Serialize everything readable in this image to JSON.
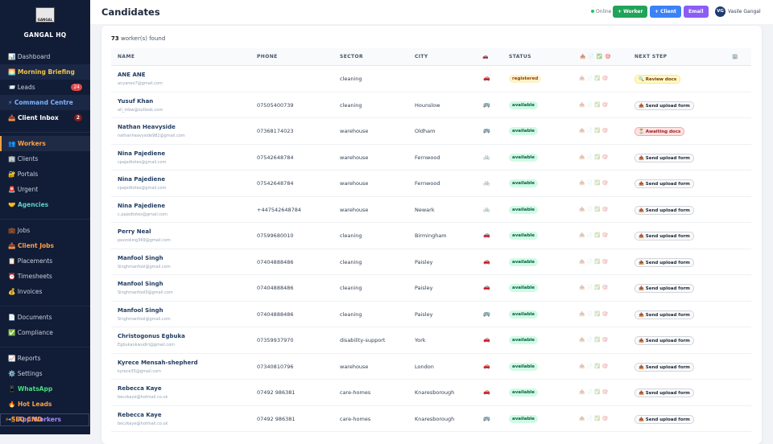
{
  "sidebar": {
    "brand": "GANGAL HQ",
    "logo_text": "GANGAL",
    "groups": [
      [
        {
          "label": "📊 Dashboard"
        },
        {
          "label": "🌅 Morning Briefing",
          "color": "#f6c244",
          "highlight": true
        },
        {
          "label": "📨 Leads",
          "badge": "24"
        },
        {
          "label": "⚡ Command Centre",
          "color": "#7fb4ff",
          "highlight": true
        },
        {
          "label": "📥 Client Inbox",
          "badge": "2",
          "color": "#ffffff"
        }
      ],
      [
        {
          "label": "👥 Workers",
          "color": "#ff9f43",
          "active": true
        },
        {
          "label": "🏢 Clients"
        },
        {
          "label": "🔐 Portals"
        },
        {
          "label": "🚨 Urgent"
        },
        {
          "label": "🤝 Agencies",
          "color": "#5fd1c6"
        }
      ],
      [
        {
          "label": "💼 Jobs"
        },
        {
          "label": "📥 Client Jobs",
          "color": "#ff9f43"
        },
        {
          "label": "📋 Placements"
        },
        {
          "label": "⏰ Timesheets"
        },
        {
          "label": "💰 Invoices"
        }
      ],
      [
        {
          "label": "📄 Documents"
        },
        {
          "label": "✅ Compliance"
        }
      ],
      [
        {
          "label": "📈 Reports"
        },
        {
          "label": "⚙️ Settings"
        },
        {
          "label": "📱 WhatsApp",
          "color": "#4ade80"
        },
        {
          "label": "🔥 Hot Leads",
          "color": "#ff9f43"
        },
        {
          "label": "📲 App Workers",
          "color": "#a78bfa"
        }
      ]
    ],
    "footer": "⚡ SEO CMD"
  },
  "header": {
    "title": "Candidates",
    "status": "Online",
    "buttons": [
      {
        "label": "+ Worker",
        "color": "#22a35a"
      },
      {
        "label": "+ Client",
        "color": "#3b82f6"
      },
      {
        "label": "Email",
        "color": "#8b5cf6"
      }
    ],
    "user": {
      "initials": "VG",
      "name": "Vasile Gangal"
    }
  },
  "summary": {
    "count": "73",
    "text": "worker(s) found"
  },
  "table": {
    "columns": [
      "NAME",
      "PHONE",
      "SECTOR",
      "CITY",
      "🚗",
      "STATUS",
      "📤 📄 ✅ 🎯",
      "NEXT STEP",
      "🏢"
    ],
    "doc_icons": [
      "📤",
      "📄",
      "✅",
      "🎯"
    ],
    "rows": [
      {
        "name": "ANE ANE",
        "email": "anyaneo7@gmail.com",
        "sector": "cleaning",
        "transport": "🚗",
        "status": "registered",
        "next": "🔍 Review docs",
        "uploaded": true
      },
      {
        "name": "Yusuf Khan",
        "email": "ali_mbw@outlook.com",
        "phone": "07505400739",
        "sector": "cleaning",
        "city": "Hounslow",
        "transport": "🚌",
        "status": "available",
        "next": "📤 Send upload form"
      },
      {
        "name": "Nathan Heavyside",
        "email": "nathanheavyside982@gmail.com",
        "phone": "07368174023",
        "sector": "warehouse",
        "city": "Oldham",
        "transport": "🚌",
        "status": "available",
        "next": "⏳ Awaiting docs",
        "uploaded": true
      },
      {
        "name": "Nina Pajediene",
        "email": "cpajedtotes@gmail.com",
        "phone": "07542648784",
        "sector": "warehouse",
        "city": "Fernwood",
        "transport": "🚲",
        "status": "available",
        "next": "📤 Send upload form"
      },
      {
        "name": "Nina Pajediene",
        "email": "cpajedtotes@gmail.com",
        "phone": "07542648784",
        "sector": "warehouse",
        "city": "Fernwood",
        "transport": "🚲",
        "status": "available",
        "next": "📤 Send upload form"
      },
      {
        "name": "Nina Pajediene",
        "email": "c.pajedtotes@gmail.com",
        "phone": "+447542648784",
        "sector": "warehouse",
        "city": "Newark",
        "transport": "🚲",
        "status": "available",
        "next": "📤 Send upload form"
      },
      {
        "name": "Perry Neal",
        "email": "pezzoking369@gmail.com",
        "phone": "07599680010",
        "sector": "cleaning",
        "city": "Birmingham",
        "transport": "🚗",
        "status": "available",
        "next": "📤 Send upload form"
      },
      {
        "name": "Manfool Singh",
        "email": "Singhmanfool@gmail.com",
        "phone": "07404888486",
        "sector": "cleaning",
        "city": "Paisley",
        "transport": "🚗",
        "status": "available",
        "next": "📤 Send upload form"
      },
      {
        "name": "Manfool Singh",
        "email": "Singhmanfool0@gmail.com",
        "phone": "07404888486",
        "sector": "cleaning",
        "city": "Paisley",
        "transport": "🚗",
        "status": "available",
        "next": "📤 Send upload form"
      },
      {
        "name": "Manfool Singh",
        "email": "Singhmanfool@gmail.com",
        "phone": "07404888486",
        "sector": "cleaning",
        "city": "Paisley",
        "transport": "🚌",
        "status": "available",
        "next": "📤 Send upload form"
      },
      {
        "name": "Christogonus Egbuka",
        "email": "Egbukankwudiri@gmail.com",
        "phone": "07359937970",
        "sector": "disability-support",
        "city": "York",
        "transport": "🚗",
        "status": "available",
        "next": "📤 Send upload form"
      },
      {
        "name": "Kyrece Mensah-shepherd",
        "email": "kyrece35@gmail.com",
        "phone": "07340810796",
        "sector": "warehouse",
        "city": "London",
        "transport": "🚗",
        "status": "available",
        "next": "📤 Send upload form"
      },
      {
        "name": "Rebecca Kaye",
        "email": "beczkaye@hotmail.co.uk",
        "phone": "07492 986381",
        "sector": "care-homes",
        "city": "Knaresborough",
        "transport": "🚗",
        "status": "available",
        "next": "📤 Send upload form"
      },
      {
        "name": "Rebecca Kaye",
        "email": "beczkaye@hotmail.co.uk",
        "phone": "07492 986381",
        "sector": "care-homes",
        "city": "Knaresborough",
        "transport": "🚌",
        "status": "available",
        "next": "📤 Send upload form"
      }
    ]
  }
}
